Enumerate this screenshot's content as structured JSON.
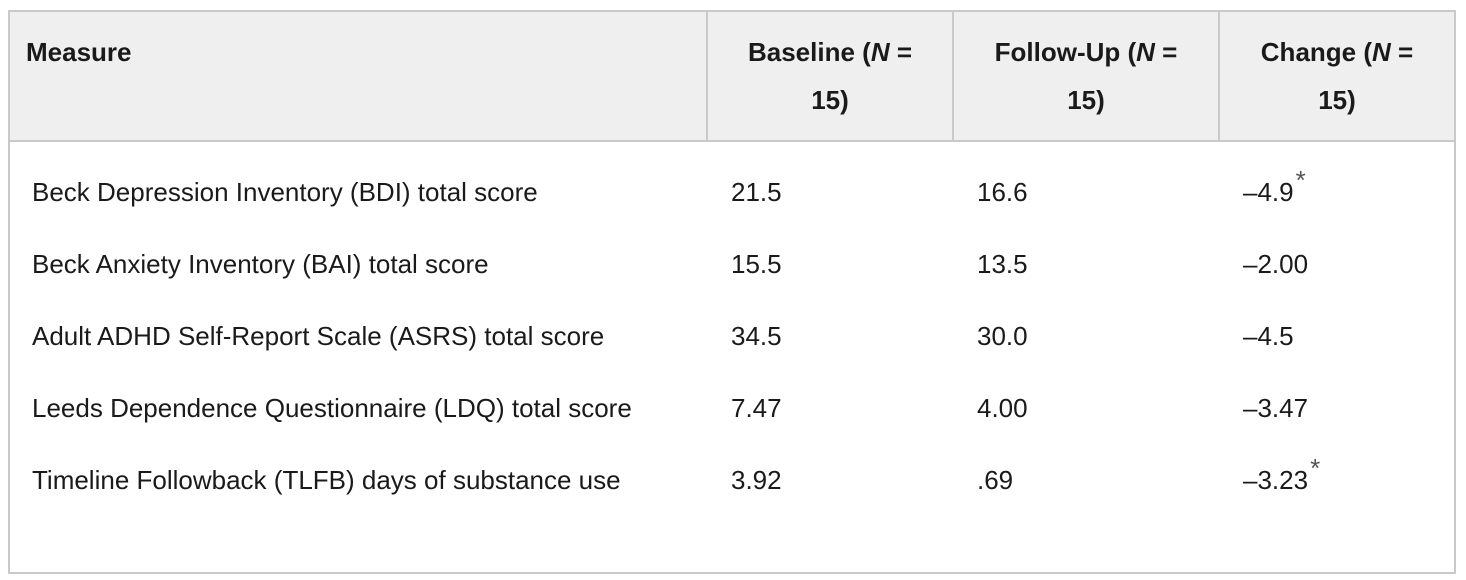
{
  "table": {
    "header": [
      {
        "text": "Measure"
      },
      {
        "prefix": "Baseline (",
        "var": "N",
        "suffix": " = 15)"
      },
      {
        "prefix": "Follow-Up (",
        "var": "N",
        "suffix": " = 15)"
      },
      {
        "prefix": "Change (",
        "var": "N",
        "suffix": " = 15)"
      }
    ],
    "rows": [
      {
        "measure": "Beck Depression Inventory (BDI) total score",
        "baseline": "21.5",
        "followup": "16.6",
        "change": "–4.9",
        "note": "*"
      },
      {
        "measure": "Beck Anxiety Inventory (BAI) total score",
        "baseline": "15.5",
        "followup": "13.5",
        "change": "–2.00"
      },
      {
        "measure": "Adult ADHD Self-Report Scale (ASRS) total score",
        "baseline": "34.5",
        "followup": "30.0",
        "change": "–4.5"
      },
      {
        "measure": "Leeds Dependence Questionnaire (LDQ) total score",
        "baseline": "7.47",
        "followup": "4.00",
        "change": "–3.47"
      },
      {
        "measure": "Timeline Followback (TLFB) days of substance use",
        "baseline": "3.92",
        "followup": ".69",
        "change": "–3.23",
        "note": "*"
      }
    ]
  }
}
